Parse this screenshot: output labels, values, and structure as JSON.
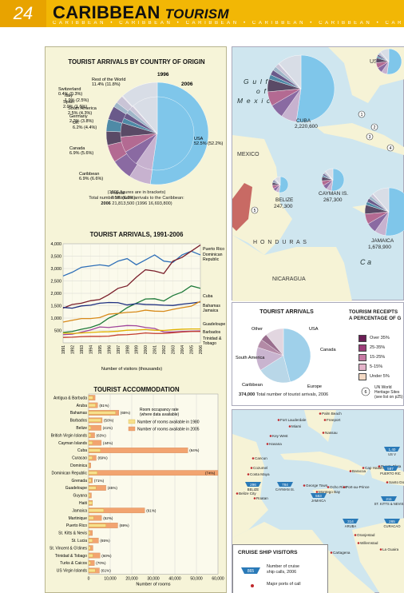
{
  "header": {
    "page_number": "24",
    "title": "CARIBBEAN",
    "title_italic": "TOURISM",
    "subtitle_strip": "CARIBBEAN • CARIBBEAN • CARIBBEAN • CARIBBEAN • CARIBBEAN • CARIBBEAN • C"
  },
  "arrivals_by_origin": {
    "title": "TOURIST ARRIVALS BY COUNTRY OF ORIGIN",
    "year_outer": "1996",
    "year_inner": "2006",
    "labels": [
      {
        "name": "Rest of the World",
        "value": "11.4% (11.8%)"
      },
      {
        "name": "Switzerland",
        "value": "0.4% (0.3%)"
      },
      {
        "name": "Italy",
        "value": "1.9% (2.5%)"
      },
      {
        "name": "Spain",
        "value": "2.0% (1.6%)"
      },
      {
        "name": "South America",
        "value": "2.5% (4.3%)"
      },
      {
        "name": "Germany",
        "value": "2.2% (3.8%)"
      },
      {
        "name": "UK",
        "value": "6.2% (4.4%)"
      },
      {
        "name": "Canada",
        "value": "6.9% (5.6%)"
      },
      {
        "name": "Caribbean",
        "value": "6.9% (6.6%)"
      },
      {
        "name": "France",
        "value": "7.5% (6.9%)"
      },
      {
        "name": "USA",
        "value": "52.5% (52.2%)"
      }
    ],
    "note1": "(1996 figures are in brackets)",
    "note2": "Total number of tourist arrivals to the Caribbean:",
    "note3_a": "2006",
    "note3_b": "21,813,500",
    "note3_c": "(1996",
    "note3_d": "16,693,800)"
  },
  "chart_data": [
    {
      "type": "pie",
      "title": "TOURIST ARRIVALS BY COUNTRY OF ORIGIN",
      "categories": [
        "USA",
        "France",
        "Caribbean",
        "Canada",
        "UK",
        "Germany",
        "South America",
        "Spain",
        "Italy",
        "Switzerland",
        "Rest of the World"
      ],
      "series": [
        {
          "name": "2006",
          "values": [
            52.5,
            7.5,
            6.9,
            6.9,
            6.2,
            2.2,
            2.5,
            2.0,
            1.9,
            0.4,
            11.4
          ]
        },
        {
          "name": "1996",
          "values": [
            52.2,
            6.9,
            6.6,
            5.6,
            4.4,
            3.8,
            4.3,
            1.6,
            2.5,
            0.3,
            11.8
          ]
        }
      ],
      "colors": [
        "#7fc6ea",
        "#c7b2cf",
        "#8a6aa2",
        "#b36a92",
        "#5a4a66",
        "#4f8aa6",
        "#6a5a8a",
        "#9fb6c8",
        "#c9c4d6",
        "#e6e2ec",
        "#d8dde6"
      ]
    },
    {
      "type": "line",
      "title": "TOURIST ARRIVALS, 1991-2006",
      "xlabel": "Number of visitors (thousands)",
      "x": [
        "1991",
        "1992",
        "1993",
        "1994",
        "1995",
        "1996",
        "1997",
        "1998",
        "1999",
        "2000",
        "2001",
        "2002",
        "2003",
        "2004",
        "2005",
        "2006"
      ],
      "ylim": [
        0,
        4000
      ],
      "yticks": [
        500,
        1000,
        1500,
        2000,
        2500,
        3000,
        3500,
        4000
      ],
      "series": [
        {
          "name": "Puerto Rico",
          "color": "#2e6fb8",
          "values": [
            2700,
            2850,
            3050,
            3100,
            3150,
            3100,
            3300,
            3400,
            3150,
            3350,
            3550,
            3300,
            3250,
            3550,
            3700,
            3550
          ]
        },
        {
          "name": "Dominican Republic",
          "color": "#7a1f2b",
          "values": [
            1400,
            1550,
            1600,
            1700,
            1750,
            1950,
            2200,
            2300,
            2650,
            2950,
            2900,
            2800,
            3300,
            3450,
            3700,
            3950
          ]
        },
        {
          "name": "Cuba",
          "color": "#1f7a3a",
          "values": [
            420,
            460,
            550,
            620,
            750,
            1000,
            1170,
            1420,
            1600,
            1770,
            1780,
            1690,
            1910,
            2050,
            2300,
            2200
          ]
        },
        {
          "name": "Bahamas",
          "color": "#1d2f80",
          "values": [
            1430,
            1400,
            1490,
            1520,
            1600,
            1630,
            1620,
            1530,
            1580,
            1550,
            1540,
            1520,
            1510,
            1560,
            1600,
            1650
          ]
        },
        {
          "name": "Jamaica",
          "color": "#d88a1a",
          "values": [
            840,
            910,
            980,
            980,
            1020,
            1160,
            1190,
            1230,
            1250,
            1320,
            1280,
            1270,
            1350,
            1420,
            1480,
            1680
          ]
        },
        {
          "name": "Guadeloupe",
          "color": "#a0449b",
          "values": [
            330,
            350,
            430,
            520,
            640,
            620,
            660,
            700,
            690,
            620,
            580,
            440,
            440,
            460,
            470,
            480
          ]
        },
        {
          "name": "Barbados",
          "color": "#e0b000",
          "values": [
            390,
            380,
            400,
            420,
            440,
            450,
            470,
            510,
            520,
            540,
            510,
            500,
            530,
            550,
            560,
            560
          ]
        },
        {
          "name": "Trinidad & Tobago",
          "color": "#c23a2b",
          "values": [
            220,
            230,
            250,
            260,
            260,
            270,
            320,
            330,
            360,
            400,
            380,
            380,
            410,
            440,
            460,
            460
          ]
        }
      ]
    },
    {
      "type": "bar",
      "title": "TOURIST ACCOMMODATION",
      "xlabel": "Number of rooms",
      "xlim": [
        0,
        60000
      ],
      "xticks": [
        "0",
        "10,000",
        "20,000",
        "30,000",
        "40,000",
        "50,000",
        "60,000"
      ],
      "categories": [
        "Antigua & Barbuda",
        "Aruba",
        "Bahamas",
        "Barbados",
        "Belize",
        "British Virgin Islands",
        "Cayman Islands",
        "Cuba",
        "Curacao",
        "Dominica",
        "Dominican Republic",
        "Grenada",
        "Guadeloupe",
        "Guyana",
        "Haiti",
        "Jamaica",
        "Martinique",
        "Puerto Rico",
        "St. Kitts & Nevis",
        "St. Lucia",
        "St. Vincent & G'dines",
        "Trinidad & Tobago",
        "Turks & Caicos",
        "US Virgin Islands"
      ],
      "series": [
        {
          "name": "Number of rooms available in 1980",
          "values": [
            2000,
            3200,
            12500,
            5800,
            1000,
            1000,
            1800,
            5500,
            1700,
            400,
            4000,
            1200,
            3400,
            700,
            1700,
            7000,
            2300,
            8000,
            700,
            1800,
            800,
            2000,
            900,
            3100
          ]
        },
        {
          "name": "Number of rooms available in 2005",
          "values": [
            3000,
            4200,
            14000,
            6300,
            5800,
            2800,
            5900,
            46000,
            3500,
            1000,
            63000,
            1800,
            8000,
            1300,
            1800,
            26000,
            6000,
            13500,
            1800,
            4600,
            2000,
            5300,
            2700,
            5000
          ]
        }
      ],
      "occupancy_labels": [
        "",
        "(81%)",
        "(65%)",
        "(50%)",
        "(41%)",
        "(63%)",
        "(44%)",
        "(64%)",
        "(69%)",
        "",
        "(74%)",
        "(71%)",
        "(45%)",
        "",
        "",
        "(61%)",
        "(52%)",
        "(69%)",
        "",
        "(65%)",
        "",
        "(60%)",
        "(70%)",
        "(61%)"
      ]
    },
    {
      "type": "pie",
      "title": "TOURIST ARRIVALS",
      "categories": [
        "USA",
        "Canada",
        "Europe",
        "Caribbean",
        "South America",
        "Other"
      ],
      "values": [
        46,
        20,
        14,
        5,
        4,
        11
      ],
      "colors": [
        "#9fd0ea",
        "#b9d7e8",
        "#c9b4cf",
        "#b38aa6",
        "#9a6e8e",
        "#e2d6e0"
      ]
    }
  ],
  "line_chart": {
    "title": "TOURIST ARRIVALS, 1991-2006",
    "xlabel": "Number of visitors (thousands)"
  },
  "bar_chart": {
    "title": "TOURIST ACCOMMODATION",
    "legend_occupancy": "Room occupancy rate",
    "legend_occupancy2": "(where data available)",
    "legend_1980": "Number of rooms available in 1980",
    "legend_2005": "Number of rooms available in 2005",
    "xlabel": "Number of rooms"
  },
  "map": {
    "gulf_1": "G u l f",
    "gulf_2": "o f",
    "gulf_3": "M e x i c o",
    "usa": "USA",
    "mexico": "MEXICO",
    "honduras": "H O N D U R A S",
    "nicaragua": "NICARAGUA",
    "cuba_name": "CUBA",
    "cuba_val": "2,220,600",
    "belize_name": "BELIZE",
    "belize_val": "247,300",
    "cayman_name": "CAYMAN IS.",
    "cayman_val": "267,300",
    "jamaica_name": "JAMAICA",
    "jamaica_val": "1,678,900",
    "ca": "C   a",
    "markers": [
      "1",
      "2",
      "3",
      "4",
      "5"
    ]
  },
  "small_pie": {
    "title": "TOURIST ARRIVALS",
    "labels": [
      "Other",
      "USA",
      "Canada",
      "Europe",
      "Caribbean",
      "South America"
    ],
    "caption_val": "374,000",
    "caption_txt": "Total number of tourist arrivals, 2006"
  },
  "receipts": {
    "title1": "TOURISM RECEIPTS",
    "title2": "A PERCENTAGE OF G",
    "items": [
      {
        "label": "Over 35%",
        "color": "#6b1e55"
      },
      {
        "label": "25-35%",
        "color": "#9c3d79"
      },
      {
        "label": "15-25%",
        "color": "#c77aa4"
      },
      {
        "label": "5-15%",
        "color": "#e3b3c9"
      },
      {
        "label": "Under 5%",
        "color": "#f3d9c4"
      }
    ],
    "heritage_num": "6",
    "heritage1": "UN World",
    "heritage2": "Heritage Sites",
    "heritage3": "(see list on p25)"
  },
  "cruise_map": {
    "places": [
      "Palm Beach",
      "Fort Lauderdale",
      "Freeport",
      "Miami",
      "Nassau",
      "Key West",
      "Havana",
      "Cancun",
      "Cozumel",
      "Costa Maya",
      "Belize City",
      "Roatan",
      "George Town",
      "Montego Bay",
      "Ocho Rios",
      "Baracoa",
      "Port-au-Prince",
      "Cap Haitien",
      "Puerto Plata",
      "Santo Domingo",
      "Oranjestad",
      "Willemstad",
      "La Guaira",
      "Cartagena"
    ],
    "belize_val": "296",
    "belize_lbl": "BELIZE",
    "cayman_val": "784",
    "cayman_lbl": "CAYMAN IS.",
    "jamaica_val": "563",
    "jamaica_lbl": "JAMAICA",
    "aruba_val": "314",
    "aruba_lbl": "ARUBA",
    "pr_val": "587",
    "pr_lbl": "PUERTO RIC",
    "stk_val": "211",
    "stk_lbl": "ST. KITTS & NEVIS",
    "cur_val": "265",
    "cur_lbl": "CURACAO",
    "usvi_val": "1,40",
    "usvi_lbl": "US V"
  },
  "cruise_legend": {
    "title": "CRUISE SHIP VISITORS",
    "badge": "865",
    "txt1": "Number of cruise",
    "txt2": "ship calls, 2006",
    "txt3": "Major ports of call"
  }
}
